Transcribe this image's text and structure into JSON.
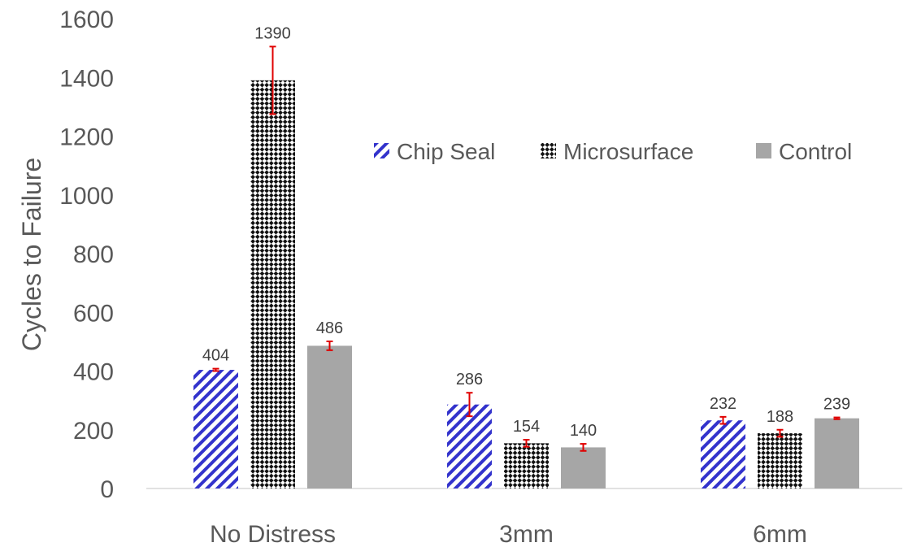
{
  "chart_data": {
    "type": "bar",
    "ylabel": "Cycles to Failure",
    "xlabel": "",
    "ylim": [
      0,
      1600
    ],
    "yticks": [
      "0",
      "200",
      "400",
      "600",
      "800",
      "1000",
      "1200",
      "1400",
      "1600"
    ],
    "categories": [
      "No Distress",
      "3mm",
      "6mm"
    ],
    "series": [
      {
        "name": "Chip Seal",
        "values": [
          404,
          286,
          232
        ],
        "error": [
          4,
          40,
          12
        ],
        "labels": [
          "404",
          "286",
          "232"
        ],
        "pattern": "diagonal-stripes",
        "color": "#3333cc"
      },
      {
        "name": "Microsurface",
        "values": [
          1390,
          154,
          188
        ],
        "error": [
          115,
          12,
          12
        ],
        "labels": [
          "1390",
          "154",
          "188"
        ],
        "pattern": "checkerboard",
        "color": "#000000"
      },
      {
        "name": "Control",
        "values": [
          486,
          140,
          239
        ],
        "error": [
          15,
          12,
          3
        ],
        "labels": [
          "486",
          "140",
          "239"
        ],
        "pattern": "solid",
        "color": "#a6a6a6"
      }
    ],
    "error_bar_color": "#e00000",
    "grid": false,
    "legend_position": "upper-right-inside"
  }
}
